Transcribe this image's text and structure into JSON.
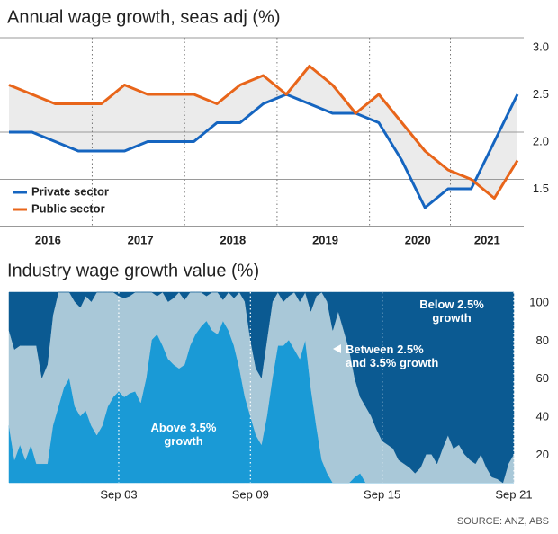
{
  "chart_data": [
    {
      "type": "line",
      "title": "Annual wage growth, seas adj (%)",
      "categories": [
        null,
        null,
        "2016",
        null,
        null,
        null,
        "2017",
        null,
        null,
        null,
        "2018",
        null,
        null,
        null,
        "2019",
        null,
        null,
        null,
        "2020",
        null,
        null,
        "2021",
        null
      ],
      "series": [
        {
          "name": "Private sector",
          "color": "#1565c0",
          "values": [
            2.0,
            2.0,
            1.9,
            1.8,
            1.8,
            1.8,
            1.9,
            1.9,
            1.9,
            2.1,
            2.1,
            2.3,
            2.4,
            2.3,
            2.2,
            2.2,
            2.1,
            1.7,
            1.2,
            1.4,
            1.4,
            1.9,
            2.4
          ]
        },
        {
          "name": "Public sector",
          "color": "#e8651a",
          "values": [
            2.5,
            2.4,
            2.3,
            2.3,
            2.3,
            2.5,
            2.4,
            2.4,
            2.4,
            2.3,
            2.5,
            2.6,
            2.4,
            2.7,
            2.5,
            2.2,
            2.4,
            2.1,
            1.8,
            1.6,
            1.5,
            1.3,
            1.7
          ]
        }
      ],
      "ylim": [
        1.0,
        3.0
      ],
      "yticks": [
        1.5,
        {
          "value": 2,
          "label": "2.0"
        },
        2.5,
        {
          "value": 3,
          "label": "3.0"
        }
      ],
      "grid": true,
      "legend": "lower left"
    },
    {
      "type": "area",
      "stacked": true,
      "title": "Industry wage growth value (%)",
      "categories": [
        null,
        null,
        null,
        null,
        null,
        null,
        null,
        null,
        null,
        null,
        null,
        null,
        null,
        null,
        null,
        null,
        null,
        null,
        null,
        null,
        "Sep 03",
        null,
        null,
        null,
        null,
        null,
        null,
        null,
        null,
        null,
        null,
        null,
        null,
        null,
        null,
        null,
        null,
        null,
        null,
        null,
        null,
        null,
        null,
        null,
        "Sep 09",
        null,
        null,
        null,
        null,
        null,
        null,
        null,
        null,
        null,
        null,
        null,
        null,
        null,
        null,
        null,
        null,
        null,
        null,
        null,
        null,
        null,
        null,
        null,
        "Sep 15",
        null,
        null,
        null,
        null,
        null,
        null,
        null,
        null,
        null,
        null,
        null,
        null,
        null,
        null,
        null,
        null,
        null,
        null,
        null,
        null,
        null,
        null,
        null,
        "Sep 21"
      ],
      "series": [
        {
          "name": "Above 3.5% growth",
          "color": "#1a9ad6",
          "values": [
            30,
            12,
            20,
            12,
            20,
            10,
            10,
            10,
            30,
            40,
            50,
            55,
            40,
            35,
            38,
            30,
            25,
            30,
            40,
            45,
            48,
            45,
            47,
            48,
            42,
            55,
            75,
            78,
            72,
            65,
            62,
            60,
            62,
            72,
            78,
            82,
            85,
            80,
            78,
            85,
            80,
            72,
            60,
            45,
            35,
            25,
            20,
            35,
            55,
            72,
            72,
            75,
            70,
            65,
            75,
            50,
            30,
            12,
            5,
            0,
            0,
            0,
            0,
            3,
            5,
            0,
            0,
            0,
            0,
            0,
            0,
            0,
            0,
            0,
            0,
            0,
            0,
            0,
            0,
            0,
            0,
            0,
            0,
            0,
            0,
            0,
            0,
            0,
            0,
            0,
            0,
            0,
            0
          ]
        },
        {
          "name": "Between 2.5% and 3.5% growth",
          "color": "#a9c8d8",
          "values": [
            50,
            58,
            52,
            60,
            52,
            62,
            45,
            52,
            58,
            60,
            50,
            45,
            55,
            57,
            60,
            65,
            75,
            70,
            60,
            55,
            50,
            52,
            51,
            52,
            58,
            45,
            25,
            20,
            28,
            30,
            35,
            40,
            34,
            28,
            22,
            18,
            13,
            20,
            22,
            11,
            20,
            25,
            40,
            50,
            40,
            35,
            35,
            40,
            40,
            28,
            23,
            23,
            30,
            30,
            25,
            40,
            68,
            88,
            90,
            80,
            90,
            80,
            70,
            52,
            40,
            40,
            35,
            28,
            22,
            20,
            18,
            12,
            10,
            8,
            5,
            8,
            15,
            15,
            10,
            18,
            25,
            18,
            20,
            15,
            12,
            10,
            15,
            8,
            3,
            2,
            0,
            10,
            15
          ]
        },
        {
          "name": "Below 2.5% growth",
          "color": "#0b5a92",
          "values": [
            20,
            30,
            28,
            28,
            28,
            28,
            45,
            38,
            12,
            0,
            0,
            0,
            5,
            8,
            2,
            5,
            0,
            0,
            0,
            0,
            2,
            3,
            2,
            0,
            0,
            0,
            0,
            2,
            0,
            5,
            3,
            0,
            4,
            0,
            0,
            0,
            2,
            0,
            0,
            4,
            0,
            3,
            0,
            5,
            25,
            40,
            45,
            25,
            5,
            0,
            5,
            2,
            0,
            5,
            0,
            10,
            2,
            0,
            5,
            20,
            10,
            20,
            30,
            45,
            55,
            60,
            65,
            72,
            78,
            80,
            82,
            88,
            90,
            92,
            95,
            92,
            85,
            85,
            90,
            82,
            75,
            82,
            80,
            85,
            88,
            90,
            85,
            92,
            97,
            98,
            100,
            90,
            85
          ]
        }
      ],
      "ylim": [
        0,
        100
      ],
      "yticks": [
        20,
        40,
        60,
        80,
        100
      ],
      "source": "SOURCE: ANZ, ABS"
    }
  ]
}
